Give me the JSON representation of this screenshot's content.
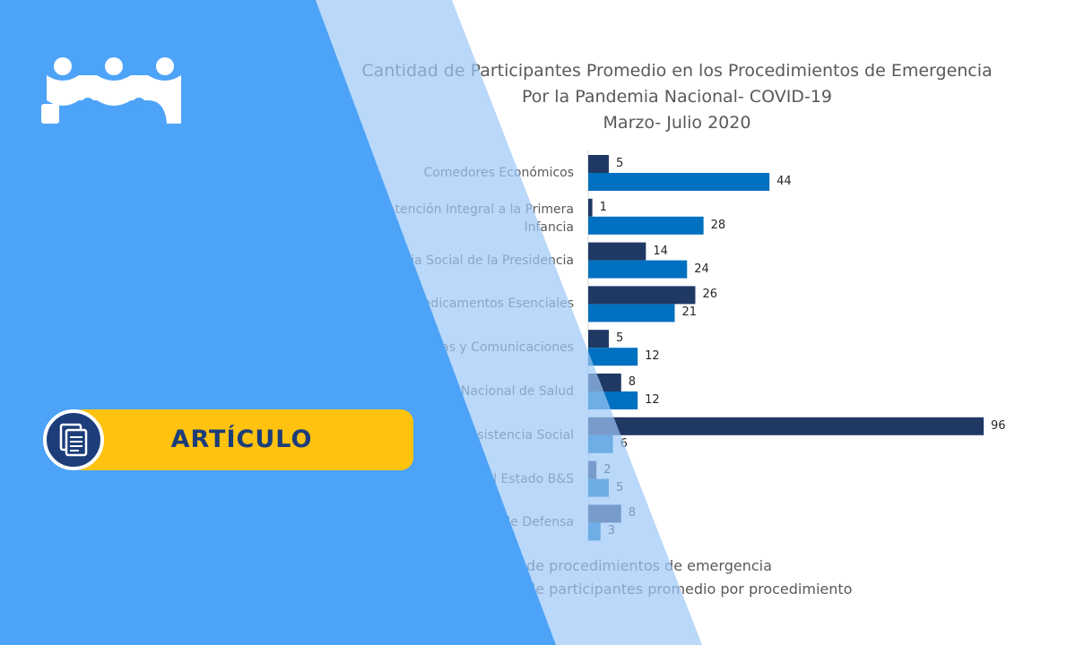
{
  "chart_data": {
    "type": "bar",
    "orientation": "horizontal",
    "title": "Cantidad de Participantes Promedio en los Procedimientos de Emergencia",
    "subtitle": "Por la Pandemia Nacional- COVID-19",
    "period": "Marzo- Julio 2020",
    "categories": [
      "Comedores Económicos",
      "Instituto Nacional de Atención Integral a la Primera Infancia",
      "Plan Asistencia Social de la Presidencia",
      "Programa de Medicamentos Esenciales",
      "Ministerio de Obras Públicas y Comunicaciones",
      "Servicio Nacional de Salud",
      "...Pública y Asistencia Social",
      "...ores de Obras del Estado B&S",
      "Ministerio de Defensa"
    ],
    "series": [
      {
        "name": "Cantidad de procedimientos de emergencia",
        "color": "#1F3864",
        "values": [
          5,
          1,
          14,
          26,
          5,
          8,
          96,
          2,
          8
        ]
      },
      {
        "name": "Cantidad de participantes promedio por procedimiento",
        "color": "#0070C0",
        "values": [
          44,
          28,
          24,
          21,
          12,
          12,
          6,
          5,
          3
        ]
      }
    ],
    "xlim": [
      0,
      96
    ],
    "grid": false,
    "legend_position": "bottom"
  },
  "badge": {
    "label": "ARTÍCULO",
    "icon": "document-icon"
  },
  "logo": {
    "icon": "people-logo-icon"
  },
  "colors": {
    "overlay_blue": "#4DA3F7",
    "overlay_light": "#A9CFF8",
    "badge_yellow": "#FFC20E",
    "badge_navy": "#1C3D7A"
  }
}
